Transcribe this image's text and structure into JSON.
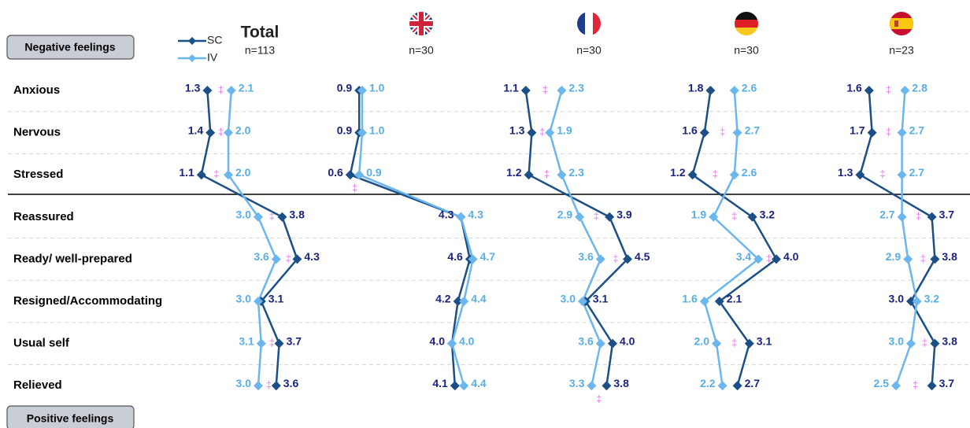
{
  "chart_data": {
    "type": "line",
    "categories": [
      "Anxious",
      "Nervous",
      "Stressed",
      "Reassured",
      "Ready/ well-prepared",
      "Resigned/Accommodating",
      "Usual self",
      "Relieved"
    ],
    "group_labels": [
      "Negative feelings",
      "Positive feelings"
    ],
    "series": [
      {
        "name": "SC",
        "color": "#1b4f86",
        "label_color": "#1a237e"
      },
      {
        "name": "IV",
        "color": "#6cb6ee",
        "label_color": "#5aaee8"
      }
    ],
    "significance_mark": "‡",
    "significance_color": "#e47ce8",
    "panels": [
      {
        "title": "Total",
        "subtitle": "n=113",
        "xlim": [
          0,
          5
        ],
        "series": [
          {
            "values": [
              1.3,
              1.4,
              1.1,
              3.8,
              4.3,
              3.1,
              3.7,
              3.6
            ],
            "value_labels": [
              "1.3",
              "1.4",
              "1.1",
              "3.8",
              "4.3",
              "3.1",
              "3.7",
              "3.6"
            ]
          },
          {
            "values": [
              2.1,
              2.0,
              2.0,
              3.0,
              3.6,
              3.0,
              3.1,
              3.0
            ],
            "value_labels": [
              "2.1",
              "2.0",
              "2.0",
              "3.0",
              "3.6",
              "3.0",
              "3.1",
              "3.0"
            ]
          }
        ],
        "significant": [
          true,
          true,
          true,
          true,
          true,
          false,
          true,
          true
        ]
      },
      {
        "subtitle": "n=30",
        "xlim": [
          0,
          5
        ],
        "series": [
          {
            "values": [
              0.9,
              0.9,
              0.6,
              4.3,
              4.6,
              4.2,
              4.0,
              4.1
            ],
            "value_labels": [
              "0.9",
              "0.9",
              "0.6",
              "4.3",
              "4.6",
              "4.2",
              "4.0",
              "4.1"
            ]
          },
          {
            "values": [
              1.0,
              1.0,
              0.9,
              4.3,
              4.7,
              4.4,
              4.0,
              4.4
            ],
            "value_labels": [
              "1.0",
              "1.0",
              "0.9",
              "4.3",
              "4.7",
              "4.4",
              "4.0",
              "4.4"
            ]
          }
        ],
        "significant": [
          false,
          false,
          true,
          false,
          false,
          false,
          false,
          false
        ]
      },
      {
        "subtitle": "n=30",
        "xlim": [
          0,
          5
        ],
        "series": [
          {
            "values": [
              1.1,
              1.3,
              1.2,
              3.9,
              4.5,
              3.1,
              4.0,
              3.8
            ],
            "value_labels": [
              "1.1",
              "1.3",
              "1.2",
              "3.9",
              "4.5",
              "3.1",
              "4.0",
              "3.8"
            ]
          },
          {
            "values": [
              2.3,
              1.9,
              2.3,
              2.9,
              3.6,
              3.0,
              3.6,
              3.3
            ],
            "value_labels": [
              "2.3",
              "1.9",
              "2.3",
              "2.9",
              "3.6",
              "3.0",
              "3.6",
              "3.3"
            ]
          }
        ],
        "significant": [
          true,
          true,
          true,
          true,
          true,
          false,
          false,
          true
        ]
      },
      {
        "subtitle": "n=30",
        "xlim": [
          0,
          5
        ],
        "series": [
          {
            "values": [
              1.8,
              1.6,
              1.2,
              3.2,
              4.0,
              2.1,
              3.1,
              2.7
            ],
            "value_labels": [
              "1.8",
              "1.6",
              "1.2",
              "3.2",
              "4.0",
              "2.1",
              "3.1",
              "2.7"
            ]
          },
          {
            "values": [
              2.6,
              2.7,
              2.6,
              1.9,
              3.4,
              1.6,
              2.0,
              2.2
            ],
            "value_labels": [
              "2.6",
              "2.7",
              "2.6",
              "1.9",
              "3.4",
              "1.6",
              "2.0",
              "2.2"
            ]
          }
        ],
        "significant": [
          false,
          true,
          true,
          true,
          true,
          false,
          true,
          false
        ]
      },
      {
        "subtitle": "n=23",
        "xlim": [
          0,
          5
        ],
        "series": [
          {
            "values": [
              1.6,
              1.7,
              1.3,
              3.7,
              3.8,
              3.0,
              3.8,
              3.7
            ],
            "value_labels": [
              "1.6",
              "1.7",
              "1.3",
              "3.7",
              "3.8",
              "3.0",
              "3.8",
              "3.7"
            ]
          },
          {
            "values": [
              2.8,
              2.7,
              2.7,
              2.7,
              2.9,
              3.2,
              3.0,
              2.5
            ],
            "value_labels": [
              "2.8",
              "2.7",
              "2.7",
              "2.7",
              "2.9",
              "3.2",
              "3.0",
              "2.5"
            ]
          }
        ],
        "significant": [
          true,
          true,
          true,
          true,
          true,
          false,
          true,
          true
        ]
      }
    ]
  }
}
